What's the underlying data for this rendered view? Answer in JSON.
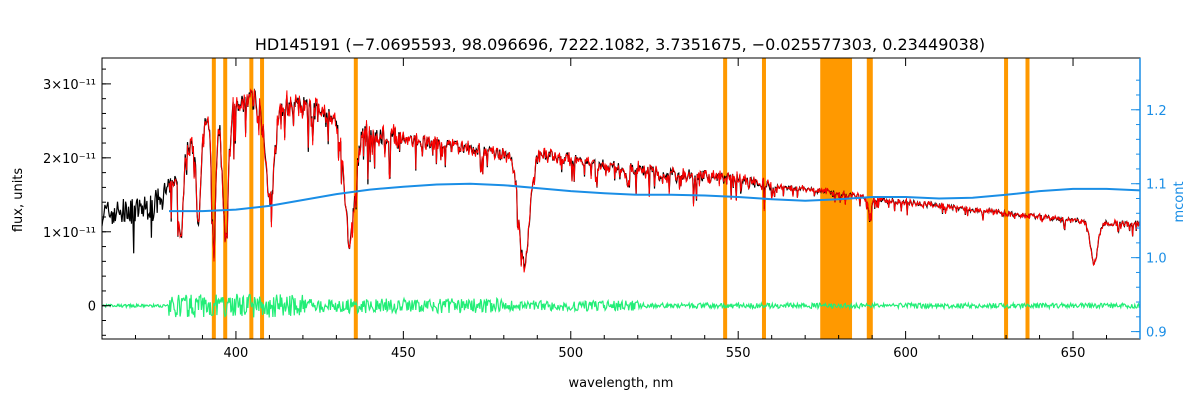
{
  "chart_data": {
    "type": "line",
    "title": "HD145191    (−7.0695593, 98.096696, 7222.1082, 3.7351675, −0.025577303, 0.23449038)",
    "xlabel": "wavelength, nm",
    "ylabel": "flux, units",
    "ylabel_right": "mcont",
    "xlim": [
      360,
      670
    ],
    "ylim": [
      -0.45,
      3.35
    ],
    "ylim_right": [
      0.89,
      1.27
    ],
    "x_ticks": [
      400,
      450,
      500,
      550,
      600,
      650
    ],
    "y_ticks": [
      {
        "value": 0,
        "label": "0"
      },
      {
        "value": 1,
        "label": "1×10⁻¹¹"
      },
      {
        "value": 2,
        "label": "2×10⁻¹¹"
      },
      {
        "value": 3,
        "label": "3×10⁻¹¹"
      }
    ],
    "y_ticks_right": [
      0.9,
      1.0,
      1.1,
      1.2
    ],
    "masked_lines": [
      393.4,
      396.8,
      404.6,
      407.8,
      435.8,
      546.1,
      557.7,
      589.0,
      589.6,
      630.0,
      636.4
    ],
    "masked_band": [
      574.5,
      584.0
    ],
    "colors": {
      "observed": "#000000",
      "model": "#ff0000",
      "residual": "#22ee77",
      "continuum": "#1a8ee6",
      "mask": "#ff9900"
    },
    "continuum_points": [
      [
        380,
        1.063
      ],
      [
        390,
        1.063
      ],
      [
        400,
        1.065
      ],
      [
        410,
        1.07
      ],
      [
        420,
        1.078
      ],
      [
        430,
        1.086
      ],
      [
        440,
        1.092
      ],
      [
        450,
        1.096
      ],
      [
        460,
        1.099
      ],
      [
        470,
        1.1
      ],
      [
        480,
        1.098
      ],
      [
        490,
        1.094
      ],
      [
        500,
        1.09
      ],
      [
        510,
        1.087
      ],
      [
        520,
        1.085
      ],
      [
        530,
        1.085
      ],
      [
        540,
        1.084
      ],
      [
        550,
        1.082
      ],
      [
        560,
        1.079
      ],
      [
        570,
        1.077
      ],
      [
        580,
        1.079
      ],
      [
        590,
        1.082
      ],
      [
        600,
        1.082
      ],
      [
        610,
        1.08
      ],
      [
        620,
        1.081
      ],
      [
        630,
        1.085
      ],
      [
        640,
        1.09
      ],
      [
        650,
        1.093
      ],
      [
        660,
        1.093
      ],
      [
        670,
        1.091
      ]
    ],
    "flux_envelope": [
      [
        360,
        1.25
      ],
      [
        370,
        1.28
      ],
      [
        375,
        1.35
      ],
      [
        380,
        1.55
      ],
      [
        385,
        2.05
      ],
      [
        390,
        2.45
      ],
      [
        395,
        2.55
      ],
      [
        400,
        2.72
      ],
      [
        405,
        2.8
      ],
      [
        410,
        2.7
      ],
      [
        415,
        2.72
      ],
      [
        420,
        2.7
      ],
      [
        425,
        2.62
      ],
      [
        430,
        2.45
      ],
      [
        435,
        2.38
      ],
      [
        440,
        2.32
      ],
      [
        450,
        2.25
      ],
      [
        460,
        2.2
      ],
      [
        470,
        2.12
      ],
      [
        480,
        2.05
      ],
      [
        485,
        2.0
      ],
      [
        490,
        2.05
      ],
      [
        500,
        1.98
      ],
      [
        510,
        1.9
      ],
      [
        520,
        1.85
      ],
      [
        530,
        1.8
      ],
      [
        540,
        1.75
      ],
      [
        550,
        1.7
      ],
      [
        560,
        1.62
      ],
      [
        570,
        1.58
      ],
      [
        580,
        1.52
      ],
      [
        590,
        1.45
      ],
      [
        600,
        1.4
      ],
      [
        610,
        1.35
      ],
      [
        620,
        1.3
      ],
      [
        630,
        1.25
      ],
      [
        640,
        1.2
      ],
      [
        650,
        1.15
      ],
      [
        660,
        1.12
      ],
      [
        670,
        1.1
      ]
    ],
    "absorption_lines": [
      {
        "x": 383.5,
        "depth": 1.0,
        "width": 0.9
      },
      {
        "x": 388.9,
        "depth": 1.2,
        "width": 1.0
      },
      {
        "x": 393.4,
        "depth": 1.8,
        "width": 0.8
      },
      {
        "x": 396.9,
        "depth": 1.7,
        "width": 1.2
      },
      {
        "x": 410.2,
        "depth": 1.3,
        "width": 1.8
      },
      {
        "x": 434.0,
        "depth": 1.5,
        "width": 2.2
      },
      {
        "x": 486.1,
        "depth": 1.45,
        "width": 2.2
      },
      {
        "x": 516.9,
        "depth": 0.2,
        "width": 0.6
      },
      {
        "x": 527.0,
        "depth": 0.15,
        "width": 0.6
      },
      {
        "x": 589.3,
        "depth": 0.2,
        "width": 0.8
      },
      {
        "x": 656.3,
        "depth": 0.55,
        "width": 1.5
      }
    ]
  }
}
